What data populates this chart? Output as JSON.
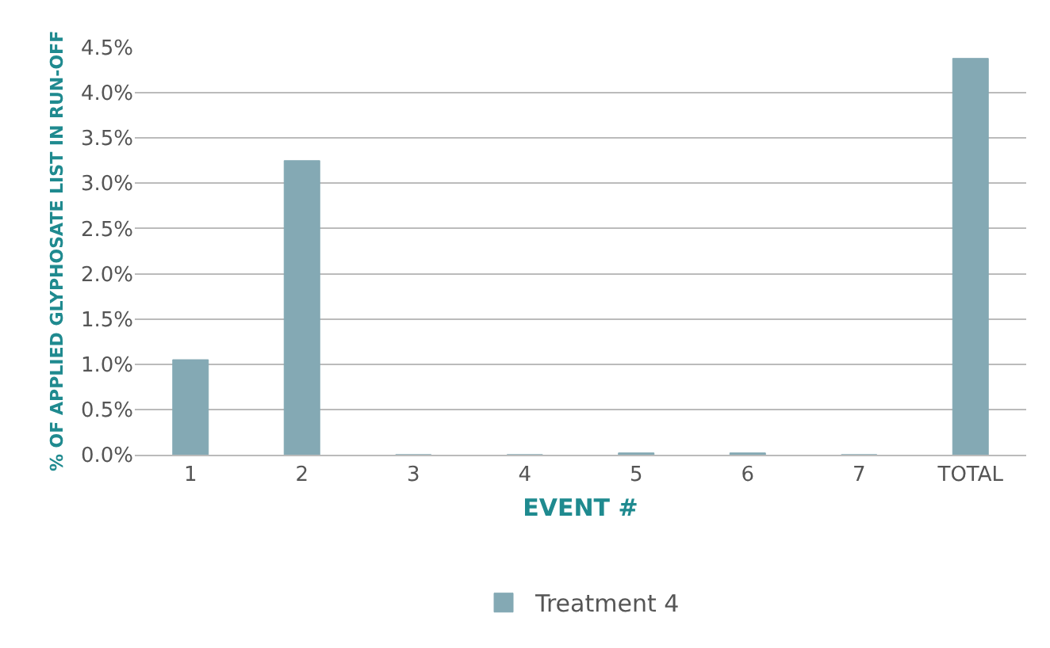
{
  "chart_data": {
    "type": "bar",
    "xlabel": "EVENT #",
    "ylabel": "% OF APPLIED GLYPHOSATE LIST IN RUN-OFF",
    "categories": [
      "1",
      "2",
      "3",
      "4",
      "5",
      "6",
      "7",
      "TOTAL"
    ],
    "series": [
      {
        "name": "Treatment 4",
        "color": "#84a9b4",
        "values": [
          1.05,
          3.25,
          0,
          0,
          0.02,
          0.02,
          0,
          4.38
        ]
      }
    ],
    "ylim": [
      0,
      4.5
    ],
    "yticks": [
      {
        "value": 0,
        "label": "0.0%"
      },
      {
        "value": 0.5,
        "label": "0.5%"
      },
      {
        "value": 1,
        "label": "1.0%"
      },
      {
        "value": 1.5,
        "label": "1.5%"
      },
      {
        "value": 2,
        "label": "2.0%"
      },
      {
        "value": 2.5,
        "label": "2.5%"
      },
      {
        "value": 3,
        "label": "3.0%"
      },
      {
        "value": 3.5,
        "label": "3.5%"
      },
      {
        "value": 4,
        "label": "4.0%"
      },
      {
        "value": 4.5,
        "label": "4.5%"
      }
    ],
    "grid": "y",
    "legend": "bottom"
  }
}
